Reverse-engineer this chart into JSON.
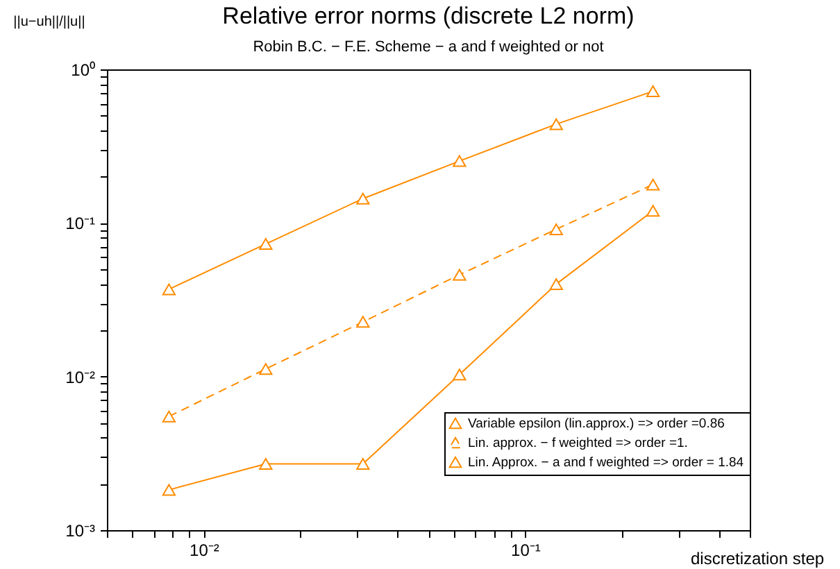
{
  "chart_data": {
    "type": "line",
    "title": "Relative error norms (discrete L2 norm)",
    "subtitle": "Robin B.C. − F.E. Scheme − a and f weighted or not",
    "xlabel": "discretization step",
    "ylabel": "||u−uh||/||u||",
    "x": [
      0.0078,
      0.0156,
      0.0313,
      0.0625,
      0.125,
      0.25
    ],
    "series": [
      {
        "name": "Variable epsilon (lin.approx.) => order =0.86",
        "color": "#ff8c00",
        "values": [
          0.037,
          0.073,
          0.144,
          0.253,
          0.44,
          0.72
        ],
        "line_style": "solid",
        "marker": "triangle"
      },
      {
        "name": "Lin. approx. − f weighted => order =1.",
        "color": "#ff8c00",
        "values": [
          0.0055,
          0.0112,
          0.0227,
          0.046,
          0.091,
          0.178
        ],
        "line_style": "dashed",
        "marker": "triangle"
      },
      {
        "name": "Lin. Approx. − a and f weighted => order = 1.84",
        "color": "#ff8c00",
        "values": [
          0.00183,
          0.0027,
          0.0027,
          0.0103,
          0.04,
          0.12
        ],
        "line_style": "solid",
        "marker": "triangle"
      }
    ],
    "log": "xy",
    "xlim": [
      0.005,
      0.5
    ],
    "ylim": [
      0.001,
      1
    ],
    "xticks": [
      {
        "value": 0.005,
        "label": null
      },
      {
        "value": 0.006,
        "label": null
      },
      {
        "value": 0.007,
        "label": null
      },
      {
        "value": 0.008,
        "label": null
      },
      {
        "value": 0.009,
        "label": null
      },
      {
        "value": 0.01,
        "label": "10⁻²"
      },
      {
        "value": 0.02,
        "label": null
      },
      {
        "value": 0.03,
        "label": null
      },
      {
        "value": 0.04,
        "label": null
      },
      {
        "value": 0.05,
        "label": null
      },
      {
        "value": 0.06,
        "label": null
      },
      {
        "value": 0.07,
        "label": null
      },
      {
        "value": 0.08,
        "label": null
      },
      {
        "value": 0.09,
        "label": null
      },
      {
        "value": 0.1,
        "label": "10⁻¹"
      },
      {
        "value": 0.2,
        "label": null
      },
      {
        "value": 0.3,
        "label": null
      },
      {
        "value": 0.4,
        "label": null
      },
      {
        "value": 0.5,
        "label": null
      }
    ],
    "yticks": [
      {
        "value": 0.001,
        "label": "10⁻³"
      },
      {
        "value": 0.002,
        "label": null
      },
      {
        "value": 0.003,
        "label": null
      },
      {
        "value": 0.004,
        "label": null
      },
      {
        "value": 0.005,
        "label": null
      },
      {
        "value": 0.006,
        "label": null
      },
      {
        "value": 0.007,
        "label": null
      },
      {
        "value": 0.008,
        "label": null
      },
      {
        "value": 0.009,
        "label": null
      },
      {
        "value": 0.01,
        "label": "10⁻²"
      },
      {
        "value": 0.02,
        "label": null
      },
      {
        "value": 0.03,
        "label": null
      },
      {
        "value": 0.04,
        "label": null
      },
      {
        "value": 0.05,
        "label": null
      },
      {
        "value": 0.06,
        "label": null
      },
      {
        "value": 0.07,
        "label": null
      },
      {
        "value": 0.08,
        "label": null
      },
      {
        "value": 0.09,
        "label": null
      },
      {
        "value": 0.1,
        "label": "10⁻¹"
      },
      {
        "value": 0.2,
        "label": null
      },
      {
        "value": 0.3,
        "label": null
      },
      {
        "value": 0.4,
        "label": null
      },
      {
        "value": 0.5,
        "label": null
      },
      {
        "value": 0.6,
        "label": null
      },
      {
        "value": 0.7,
        "label": null
      },
      {
        "value": 0.8,
        "label": null
      },
      {
        "value": 0.9,
        "label": null
      },
      {
        "value": 1,
        "label": "10⁰"
      }
    ],
    "grid": false,
    "legend": "bottom right"
  }
}
